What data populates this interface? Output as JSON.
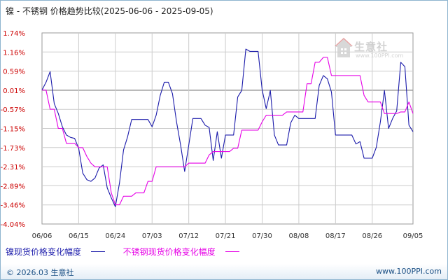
{
  "title": "镍 - 不锈钢 价格趋势比较(2025-06-06 - 2025-09-05)",
  "footer": {
    "copyright": "© 2026.03 生意社",
    "site": "www.100PPI.com"
  },
  "watermark": {
    "name": "生意社",
    "url": "www.100PPI.com"
  },
  "colors": {
    "series1": "#1a1aaa",
    "series2": "#e600e6",
    "tick": "#cc0000",
    "grid": "#cccccc",
    "zero": "#999999"
  },
  "chart_data": {
    "type": "line",
    "ylim": [
      -4.04,
      1.74
    ],
    "yticks": [
      "1.74%",
      "1.16%",
      "0.59%",
      "0.01%",
      "-0.57%",
      "-1.15%",
      "-1.73%",
      "-2.31%",
      "-2.89%",
      "-3.46%",
      "-4.04%"
    ],
    "xlim": [
      "06/06",
      "09/05"
    ],
    "xticks": [
      "06/06",
      "06/15",
      "06/24",
      "07/03",
      "07/12",
      "07/21",
      "07/30",
      "08/08",
      "08/17",
      "08/26",
      "09/05"
    ],
    "grid": true,
    "legend_position": "bottom-left",
    "series": [
      {
        "name": "镍现货价格变化幅度",
        "points": [
          [
            "06/06",
            0.01
          ],
          [
            "06/07",
            0.25
          ],
          [
            "06/08",
            0.57
          ],
          [
            "06/09",
            -0.4
          ],
          [
            "06/10",
            -0.7
          ],
          [
            "06/11",
            -1.1
          ],
          [
            "06/12",
            -1.35
          ],
          [
            "06/13",
            -1.42
          ],
          [
            "06/14",
            -1.45
          ],
          [
            "06/15",
            -1.75
          ],
          [
            "06/16",
            -2.5
          ],
          [
            "06/17",
            -2.7
          ],
          [
            "06/18",
            -2.75
          ],
          [
            "06/19",
            -2.65
          ],
          [
            "06/20",
            -2.35
          ],
          [
            "06/21",
            -2.25
          ],
          [
            "06/22",
            -2.95
          ],
          [
            "06/23",
            -3.25
          ],
          [
            "06/24",
            -3.52
          ],
          [
            "06/25",
            -2.8
          ],
          [
            "06/26",
            -1.8
          ],
          [
            "06/27",
            -1.4
          ],
          [
            "06/28",
            -0.88
          ],
          [
            "06/29",
            -0.88
          ],
          [
            "06/30",
            -0.88
          ],
          [
            "07/01",
            -0.88
          ],
          [
            "07/02",
            -0.88
          ],
          [
            "07/03",
            -1.1
          ],
          [
            "07/04",
            -0.75
          ],
          [
            "07/05",
            -0.15
          ],
          [
            "07/06",
            0.25
          ],
          [
            "07/07",
            0.25
          ],
          [
            "07/08",
            -0.1
          ],
          [
            "07/09",
            -0.95
          ],
          [
            "07/10",
            -1.65
          ],
          [
            "07/11",
            -2.45
          ],
          [
            "07/12",
            -1.65
          ],
          [
            "07/13",
            -0.85
          ],
          [
            "07/14",
            -0.85
          ],
          [
            "07/15",
            -0.85
          ],
          [
            "07/16",
            -1.05
          ],
          [
            "07/17",
            -1.12
          ],
          [
            "07/18",
            -2.12
          ],
          [
            "07/19",
            -1.25
          ],
          [
            "07/20",
            -2.05
          ],
          [
            "07/21",
            -1.35
          ],
          [
            "07/22",
            -1.35
          ],
          [
            "07/23",
            -1.35
          ],
          [
            "07/24",
            -0.2
          ],
          [
            "07/25",
            0.0
          ],
          [
            "07/26",
            1.25
          ],
          [
            "07/27",
            1.18
          ],
          [
            "07/28",
            1.18
          ],
          [
            "07/29",
            1.18
          ],
          [
            "07/30",
            0.02
          ],
          [
            "07/31",
            -0.55
          ],
          [
            "08/01",
            0.0
          ],
          [
            "08/02",
            -1.35
          ],
          [
            "08/03",
            -1.65
          ],
          [
            "08/04",
            -1.65
          ],
          [
            "08/05",
            -1.65
          ],
          [
            "08/06",
            -0.98
          ],
          [
            "08/07",
            -0.75
          ],
          [
            "08/08",
            -0.85
          ],
          [
            "08/09",
            -0.85
          ],
          [
            "08/10",
            -0.85
          ],
          [
            "08/11",
            -0.85
          ],
          [
            "08/12",
            -0.85
          ],
          [
            "08/13",
            0.15
          ],
          [
            "08/14",
            0.45
          ],
          [
            "08/15",
            0.35
          ],
          [
            "08/16",
            -0.05
          ],
          [
            "08/17",
            -1.35
          ],
          [
            "08/18",
            -1.35
          ],
          [
            "08/19",
            -1.35
          ],
          [
            "08/20",
            -1.35
          ],
          [
            "08/21",
            -1.35
          ],
          [
            "08/22",
            -1.62
          ],
          [
            "08/23",
            -1.55
          ],
          [
            "08/24",
            -2.05
          ],
          [
            "08/25",
            -2.05
          ],
          [
            "08/26",
            -2.05
          ],
          [
            "08/27",
            -1.72
          ],
          [
            "08/28",
            -0.95
          ],
          [
            "08/29",
            0.0
          ],
          [
            "08/30",
            -1.15
          ],
          [
            "08/31",
            -0.85
          ],
          [
            "09/01",
            -0.62
          ],
          [
            "09/02",
            0.85
          ],
          [
            "09/03",
            0.72
          ],
          [
            "09/04",
            -1.05
          ],
          [
            "09/05",
            -1.25
          ]
        ]
      },
      {
        "name": "不锈钢现货价格变化幅度",
        "points": [
          [
            "06/06",
            0.01
          ],
          [
            "06/07",
            0.01
          ],
          [
            "06/08",
            -0.57
          ],
          [
            "06/09",
            -0.57
          ],
          [
            "06/10",
            -1.15
          ],
          [
            "06/11",
            -1.15
          ],
          [
            "06/12",
            -1.6
          ],
          [
            "06/13",
            -1.6
          ],
          [
            "06/14",
            -1.6
          ],
          [
            "06/15",
            -1.73
          ],
          [
            "06/16",
            -1.73
          ],
          [
            "06/17",
            -2.0
          ],
          [
            "06/18",
            -2.2
          ],
          [
            "06/19",
            -2.31
          ],
          [
            "06/20",
            -2.31
          ],
          [
            "06/21",
            -2.31
          ],
          [
            "06/22",
            -2.31
          ],
          [
            "06/23",
            -3.1
          ],
          [
            "06/24",
            -3.46
          ],
          [
            "06/25",
            -3.46
          ],
          [
            "06/26",
            -3.2
          ],
          [
            "06/27",
            -3.2
          ],
          [
            "06/28",
            -3.2
          ],
          [
            "06/29",
            -3.1
          ],
          [
            "06/30",
            -3.1
          ],
          [
            "07/01",
            -3.1
          ],
          [
            "07/02",
            -2.75
          ],
          [
            "07/03",
            -2.75
          ],
          [
            "07/04",
            -2.31
          ],
          [
            "07/05",
            -2.31
          ],
          [
            "07/06",
            -2.31
          ],
          [
            "07/07",
            -2.31
          ],
          [
            "07/08",
            -2.31
          ],
          [
            "07/09",
            -2.31
          ],
          [
            "07/10",
            -2.31
          ],
          [
            "07/11",
            -2.31
          ],
          [
            "07/12",
            -2.2
          ],
          [
            "07/13",
            -2.2
          ],
          [
            "07/14",
            -2.2
          ],
          [
            "07/15",
            -2.2
          ],
          [
            "07/16",
            -2.2
          ],
          [
            "07/17",
            -1.95
          ],
          [
            "07/18",
            -1.85
          ],
          [
            "07/19",
            -1.85
          ],
          [
            "07/20",
            -1.85
          ],
          [
            "07/21",
            -1.85
          ],
          [
            "07/22",
            -1.85
          ],
          [
            "07/23",
            -1.75
          ],
          [
            "07/24",
            -1.75
          ],
          [
            "07/25",
            -1.2
          ],
          [
            "07/26",
            -1.2
          ],
          [
            "07/27",
            -1.2
          ],
          [
            "07/28",
            -1.2
          ],
          [
            "07/29",
            -1.2
          ],
          [
            "07/30",
            -0.95
          ],
          [
            "07/31",
            -0.75
          ],
          [
            "08/01",
            -0.75
          ],
          [
            "08/02",
            -0.75
          ],
          [
            "08/03",
            -0.75
          ],
          [
            "08/04",
            -0.75
          ],
          [
            "08/05",
            -0.65
          ],
          [
            "08/06",
            -0.65
          ],
          [
            "08/07",
            -0.65
          ],
          [
            "08/08",
            -0.65
          ],
          [
            "08/09",
            -0.65
          ],
          [
            "08/10",
            0.2
          ],
          [
            "08/11",
            0.2
          ],
          [
            "08/12",
            0.85
          ],
          [
            "08/13",
            0.85
          ],
          [
            "08/14",
            1.0
          ],
          [
            "08/15",
            1.0
          ],
          [
            "08/16",
            0.45
          ],
          [
            "08/17",
            0.45
          ],
          [
            "08/18",
            0.45
          ],
          [
            "08/19",
            0.45
          ],
          [
            "08/20",
            0.45
          ],
          [
            "08/21",
            0.45
          ],
          [
            "08/22",
            0.45
          ],
          [
            "08/23",
            0.45
          ],
          [
            "08/24",
            -0.15
          ],
          [
            "08/25",
            -0.35
          ],
          [
            "08/26",
            -0.35
          ],
          [
            "08/27",
            -0.35
          ],
          [
            "08/28",
            -0.35
          ],
          [
            "08/29",
            -0.7
          ],
          [
            "08/30",
            -0.7
          ],
          [
            "08/31",
            -0.7
          ],
          [
            "09/01",
            -0.7
          ],
          [
            "09/02",
            -0.65
          ],
          [
            "09/03",
            -0.65
          ],
          [
            "09/04",
            -0.35
          ],
          [
            "09/05",
            -0.7
          ]
        ]
      }
    ]
  }
}
